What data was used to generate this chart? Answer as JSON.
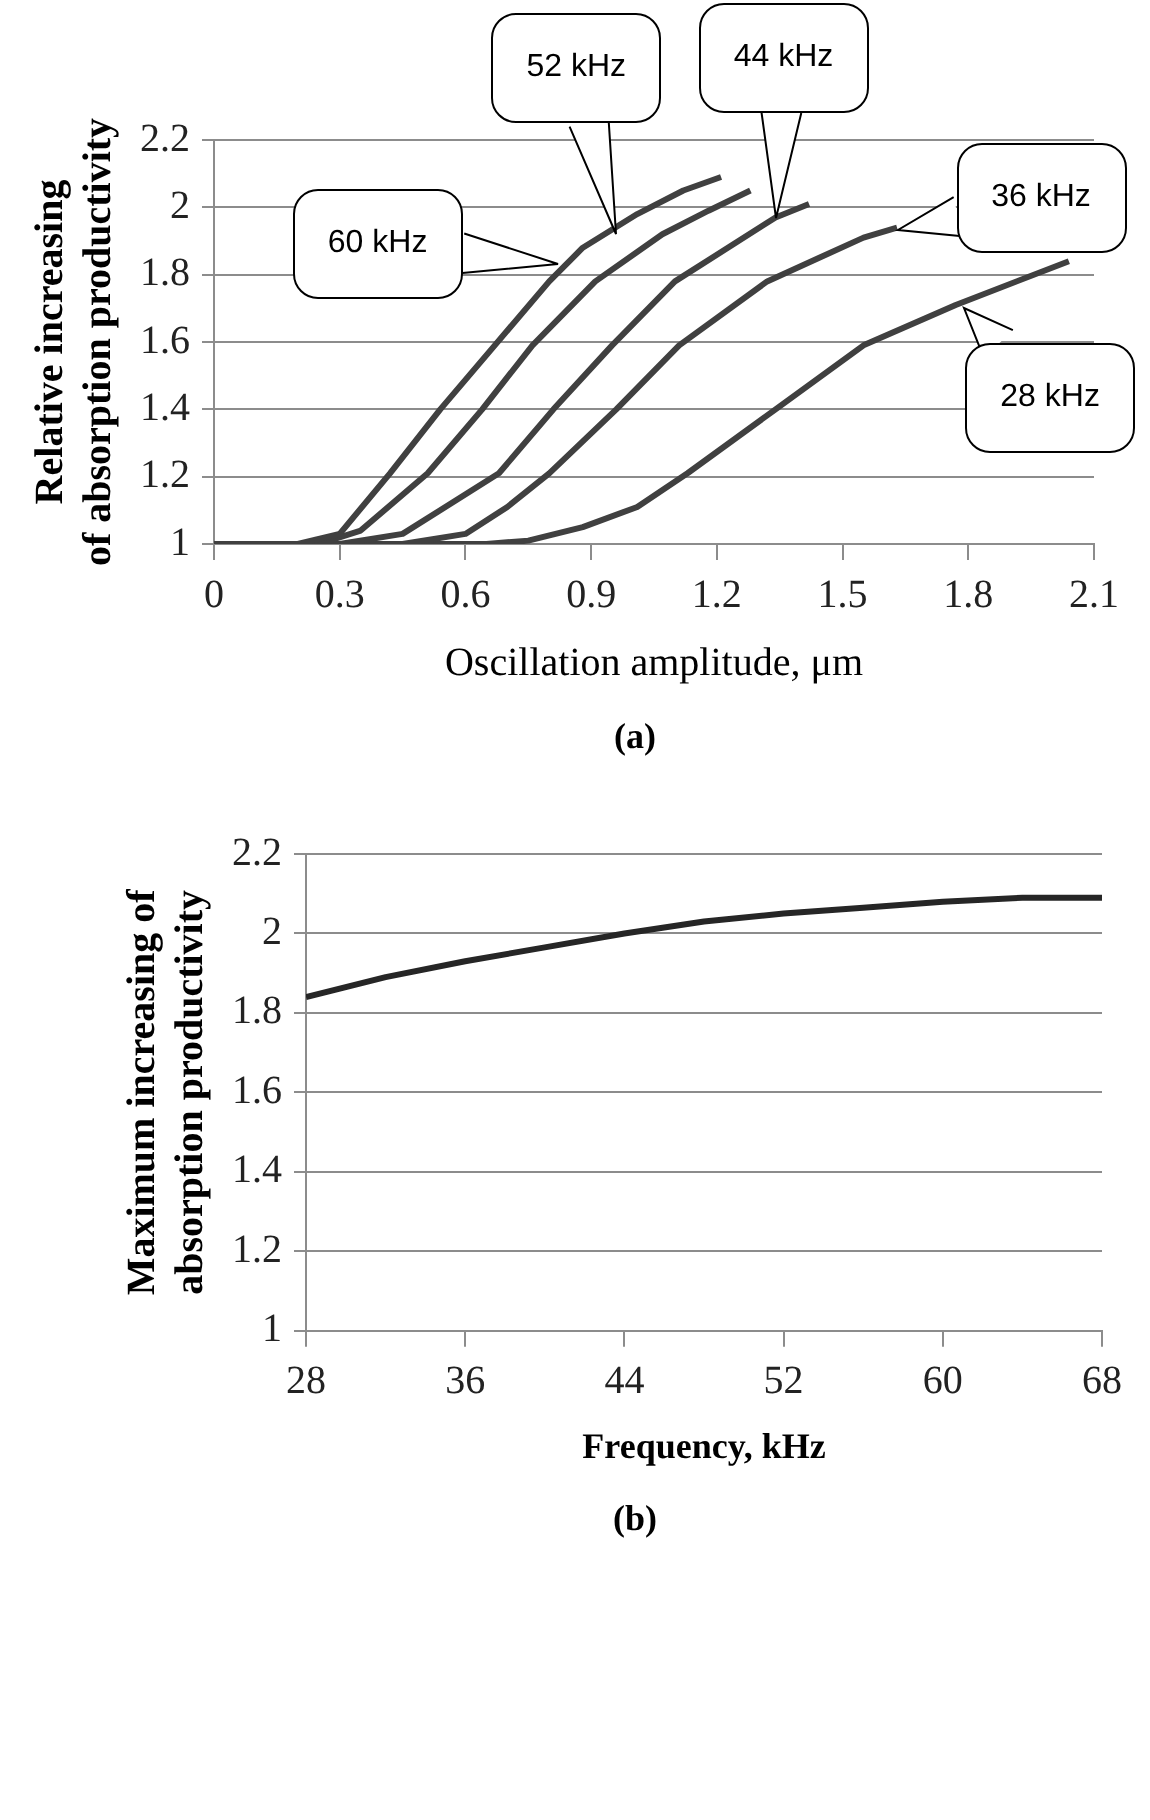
{
  "chart_data": [
    {
      "type": "line",
      "xlabel": "Oscillation amplitude, μm",
      "ylabel": "Relative increasing\nof absorption productivity",
      "xlim": [
        0,
        2.1
      ],
      "xticks": [
        0,
        0.3,
        0.6,
        0.9,
        1.2,
        1.5,
        1.8,
        2.1
      ],
      "ylim": [
        1,
        2.2
      ],
      "yticks": [
        1,
        1.2,
        1.4,
        1.6,
        1.8,
        2,
        2.2
      ],
      "grid": "y",
      "series": [
        {
          "color": "#404040",
          "x": [
            0,
            0.2,
            0.3,
            0.42,
            0.54,
            0.67,
            0.8,
            0.88,
            1.01,
            1.12,
            1.21
          ],
          "values": [
            1,
            1,
            1.03,
            1.21,
            1.4,
            1.59,
            1.78,
            1.88,
            1.98,
            2.05,
            2.09
          ]
        },
        {
          "color": "#404040",
          "x": [
            0,
            0.25,
            0.35,
            0.51,
            0.64,
            0.76,
            0.91,
            1.07,
            1.18,
            1.28
          ],
          "values": [
            1,
            1,
            1.04,
            1.21,
            1.4,
            1.59,
            1.78,
            1.92,
            1.99,
            2.05
          ]
        },
        {
          "color": "#404040",
          "x": [
            0,
            0.3,
            0.45,
            0.68,
            0.81,
            0.95,
            1.1,
            1.34,
            1.42
          ],
          "values": [
            1,
            1,
            1.03,
            1.21,
            1.4,
            1.59,
            1.78,
            1.97,
            2.01
          ]
        },
        {
          "color": "#404040",
          "x": [
            0,
            0.45,
            0.6,
            0.7,
            0.8,
            0.96,
            1.11,
            1.32,
            1.55,
            1.63
          ],
          "values": [
            1,
            1,
            1.03,
            1.11,
            1.21,
            1.4,
            1.59,
            1.78,
            1.91,
            1.94
          ]
        },
        {
          "color": "#404040",
          "x": [
            0,
            0.65,
            0.75,
            0.88,
            1.01,
            1.13,
            1.34,
            1.55,
            1.77,
            2.04
          ],
          "values": [
            1,
            1,
            1.01,
            1.05,
            1.11,
            1.21,
            1.4,
            1.59,
            1.71,
            1.84
          ]
        }
      ],
      "annotations": [
        {
          "text": "60 kHz",
          "x": 0.82,
          "y": 1.83
        },
        {
          "text": "52 kHz",
          "x": 0.96,
          "y": 1.92
        },
        {
          "text": "44 kHz",
          "x": 1.34,
          "y": 1.97
        },
        {
          "text": "36 kHz",
          "x": 1.63,
          "y": 1.93
        },
        {
          "text": "28 kHz",
          "x": 1.79,
          "y": 1.7
        },
        "(a)"
      ]
    },
    {
      "type": "line",
      "xlabel": "Frequency, kHz",
      "ylabel": "Maximum increasing of\nabsorption productivity",
      "xlim": [
        28,
        68
      ],
      "xticks": [
        28,
        36,
        44,
        52,
        60,
        68
      ],
      "ylim": [
        1,
        2.2
      ],
      "yticks": [
        1,
        1.2,
        1.4,
        1.6,
        1.8,
        2,
        2.2
      ],
      "grid": "y",
      "series": [
        {
          "color": "#262626",
          "x": [
            28,
            32,
            36,
            40,
            44,
            48,
            52,
            56,
            60,
            64,
            68
          ],
          "values": [
            1.84,
            1.89,
            1.93,
            1.965,
            2,
            2.03,
            2.05,
            2.065,
            2.08,
            2.09,
            2.09
          ]
        }
      ],
      "annotations": [
        "(b)"
      ]
    }
  ]
}
